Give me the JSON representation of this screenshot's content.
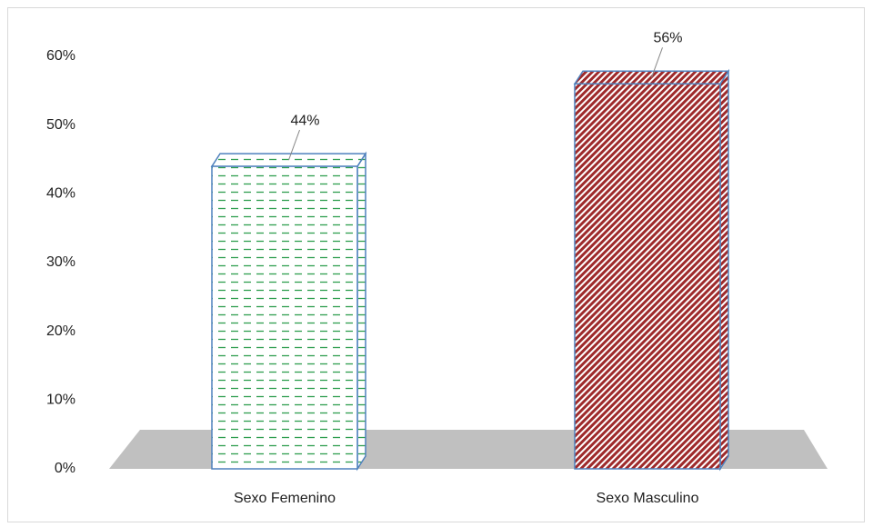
{
  "chart_data": {
    "type": "bar3d",
    "categories": [
      "Sexo Femenino",
      "Sexo Masculino"
    ],
    "values": [
      44,
      56
    ],
    "value_labels": [
      "44%",
      "56%"
    ],
    "colors": [
      "#2e9e4f",
      "#9e2a2b"
    ],
    "ylim": [
      0,
      60
    ],
    "yticks": [
      {
        "value": 0,
        "label": "0%"
      },
      {
        "value": 10,
        "label": "10%"
      },
      {
        "value": 20,
        "label": "20%"
      },
      {
        "value": 30,
        "label": "30%"
      },
      {
        "value": 40,
        "label": "40%"
      },
      {
        "value": 50,
        "label": "50%"
      },
      {
        "value": 60,
        "label": "60%"
      }
    ],
    "grid": false
  }
}
